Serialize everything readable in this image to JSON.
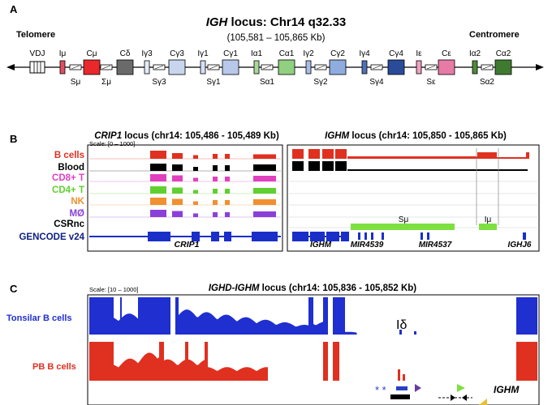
{
  "panelA": {
    "letter": "A",
    "title_gene": "IGH",
    "title_rest": " locus: Chr14 q32.33",
    "coords": "(105,581 – 105,865 Kb)",
    "telomere": "Telomere",
    "centromere": "Centromere",
    "segments": [
      {
        "top": "VDJ",
        "bottom": "",
        "kind": "vdj"
      },
      {
        "top": "Iμ",
        "bottom": "",
        "kind": "intron",
        "color": "#e05060"
      },
      {
        "top": "",
        "bottom": "Sμ",
        "kind": "switch"
      },
      {
        "top": "Cμ",
        "bottom": "",
        "kind": "const",
        "color": "#e8282a"
      },
      {
        "top": "",
        "bottom": "Σμ",
        "kind": "switch"
      },
      {
        "top": "Cδ",
        "bottom": "",
        "kind": "const",
        "color": "#6a6a6a"
      },
      {
        "top": "Iγ3",
        "bottom": "",
        "kind": "intron",
        "color": "#e4ebf7"
      },
      {
        "top": "",
        "bottom": "Sγ3",
        "kind": "switch"
      },
      {
        "top": "Cγ3",
        "bottom": "",
        "kind": "const",
        "color": "#c8d5ee"
      },
      {
        "top": "Iγ1",
        "bottom": "",
        "kind": "intron",
        "color": "#d6e0f3"
      },
      {
        "top": "",
        "bottom": "Sγ1",
        "kind": "switch"
      },
      {
        "top": "Cγ1",
        "bottom": "",
        "kind": "const",
        "color": "#b8c8ea"
      },
      {
        "top": "Iα1",
        "bottom": "",
        "kind": "intron",
        "color": "#a8d89a"
      },
      {
        "top": "",
        "bottom": "Sα1",
        "kind": "switch"
      },
      {
        "top": "Cα1",
        "bottom": "",
        "kind": "const",
        "color": "#90d080"
      },
      {
        "top": "Iγ2",
        "bottom": "",
        "kind": "intron",
        "color": "#a8bde6"
      },
      {
        "top": "",
        "bottom": "Sγ2",
        "kind": "switch"
      },
      {
        "top": "Cγ2",
        "bottom": "",
        "kind": "const",
        "color": "#8facdf"
      },
      {
        "top": "Iγ4",
        "bottom": "",
        "kind": "intron",
        "color": "#5070b8"
      },
      {
        "top": "",
        "bottom": "Sγ4",
        "kind": "switch"
      },
      {
        "top": "Cγ4",
        "bottom": "",
        "kind": "const",
        "color": "#2a4b9a"
      },
      {
        "top": "Iε",
        "bottom": "",
        "kind": "intron",
        "color": "#f0a0c0"
      },
      {
        "top": "",
        "bottom": "Sε",
        "kind": "switch"
      },
      {
        "top": "Cε",
        "bottom": "",
        "kind": "const",
        "color": "#e87aa6"
      },
      {
        "top": "Iα2",
        "bottom": "",
        "kind": "intron",
        "color": "#4f8a3a"
      },
      {
        "top": "",
        "bottom": "Sα2",
        "kind": "switch"
      },
      {
        "top": "Cα2",
        "bottom": "",
        "kind": "const",
        "color": "#3f7a30"
      }
    ]
  },
  "panelB": {
    "letter": "B",
    "left_title_gene": "CRIP1",
    "left_title_rest": " locus (chr14: 105,486 - 105,489 Kb)",
    "right_title_gene": "IGHM",
    "right_title_rest": " locus (chr14: 105,850 - 105,865 Kb)",
    "scale": "Scale: [0 – 1000]",
    "tracks": [
      {
        "label": "B cells",
        "color": "#e03020"
      },
      {
        "label": "Blood",
        "color": "#000000"
      },
      {
        "label": "CD8+ T",
        "color": "#e040c0"
      },
      {
        "label": "CD4+ T",
        "color": "#60d030"
      },
      {
        "label": "NK",
        "color": "#f09030"
      },
      {
        "label": "MØ",
        "color": "#8a40d8"
      },
      {
        "label": "CSRnc",
        "color": "#000000"
      },
      {
        "label": "GENCODE v24",
        "color": "#102080"
      }
    ],
    "left_gene_label": "CRIP1",
    "right_gene_labels": [
      "IGHM",
      "MIR4539",
      "MIR4537",
      "IGHJ6"
    ],
    "smu_label": "Sμ",
    "imu_label": "Iμ",
    "gencode_color": "#1a2fc8"
  },
  "panelC": {
    "letter": "C",
    "title_gene": "IGHD-IGHM",
    "title_rest": " locus (chr14: 105,836 - 105,852 Kb)",
    "scale": "Scale: [10 – 1000]",
    "tracks": [
      {
        "label": "Tonsilar B cells",
        "color": "#1f2fd0"
      },
      {
        "label": "PB B cells",
        "color": "#e03020"
      }
    ],
    "idelta_label": "Iδ",
    "asterisks": "* *",
    "gene_label": "IGHM"
  }
}
